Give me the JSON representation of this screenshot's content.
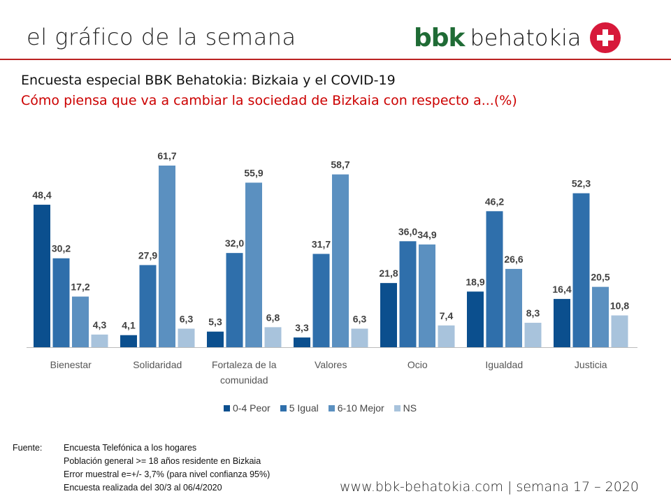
{
  "header": {
    "title": "el gráfico de la semana",
    "logo_bbk": "bbk",
    "logo_text": "behatokia"
  },
  "chart_data": {
    "type": "bar",
    "title": "Encuesta especial BBK Behatokia: Bizkaia y el COVID-19",
    "subtitle": "Cómo piensa que va a cambiar la sociedad de Bizkaia con respecto a...(%)",
    "categories": [
      "Bienestar",
      "Solidaridad",
      "Fortaleza de la comunidad",
      "Valores",
      "Ocio",
      "Igualdad",
      "Justicia"
    ],
    "category_lines": [
      [
        "Bienestar"
      ],
      [
        "Solidaridad"
      ],
      [
        "Fortaleza de la",
        "comunidad"
      ],
      [
        "Valores"
      ],
      [
        "Ocio"
      ],
      [
        "Igualdad"
      ],
      [
        "Justicia"
      ]
    ],
    "series": [
      {
        "name": "0-4 Peor",
        "color": "#0b4f8e",
        "values": [
          48.4,
          4.1,
          5.3,
          3.3,
          21.8,
          18.9,
          16.4
        ]
      },
      {
        "name": "5 Igual",
        "color": "#2f6fab",
        "values": [
          30.2,
          27.9,
          32.0,
          31.7,
          36.0,
          46.2,
          52.3
        ]
      },
      {
        "name": "6-10 Mejor",
        "color": "#5b90c0",
        "values": [
          17.2,
          61.7,
          55.9,
          58.7,
          34.9,
          26.6,
          20.5
        ]
      },
      {
        "name": "NS",
        "color": "#a8c3dc",
        "values": [
          4.3,
          6.3,
          6.8,
          6.3,
          7.4,
          8.3,
          10.8
        ]
      }
    ],
    "ylim": [
      0,
      65
    ],
    "legend": "bottom",
    "grid": false,
    "xlabel": "",
    "ylabel": ""
  },
  "source": {
    "label": "Fuente:",
    "lines": [
      "Encuesta Telefónica a los hogares",
      "Población general >= 18 años residente en Bizkaia",
      "Error muestral e=+/- 3,7% (para nivel confianza 95%)",
      "Encuesta realizada del 30/3 al 06/4/2020"
    ]
  },
  "footer": "www.bbk-behatokia.com | semana 17 – 2020"
}
